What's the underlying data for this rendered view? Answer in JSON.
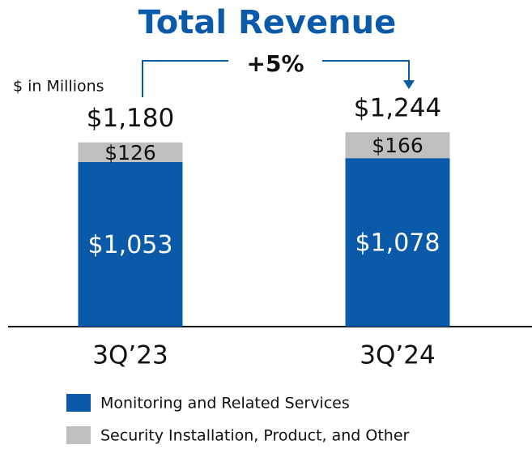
{
  "chart_data": {
    "type": "stacked_bar",
    "title": "Total Revenue",
    "y_label": "$ in Millions",
    "annotation": "+5%",
    "categories": [
      "3Q’23",
      "3Q’24"
    ],
    "series": [
      {
        "name": "Monitoring and Related Services",
        "color": "#0b5aa9",
        "values": [
          1053,
          1078
        ],
        "value_labels": [
          "$1,053",
          "$1,078"
        ]
      },
      {
        "name": "Security Installation, Product, and Other",
        "color": "#bfbfbf",
        "values": [
          126,
          166
        ],
        "value_labels": [
          "$126",
          "$166"
        ]
      }
    ],
    "totals": [
      1180,
      1244
    ],
    "total_labels": [
      "$1,180",
      "$1,244"
    ]
  }
}
